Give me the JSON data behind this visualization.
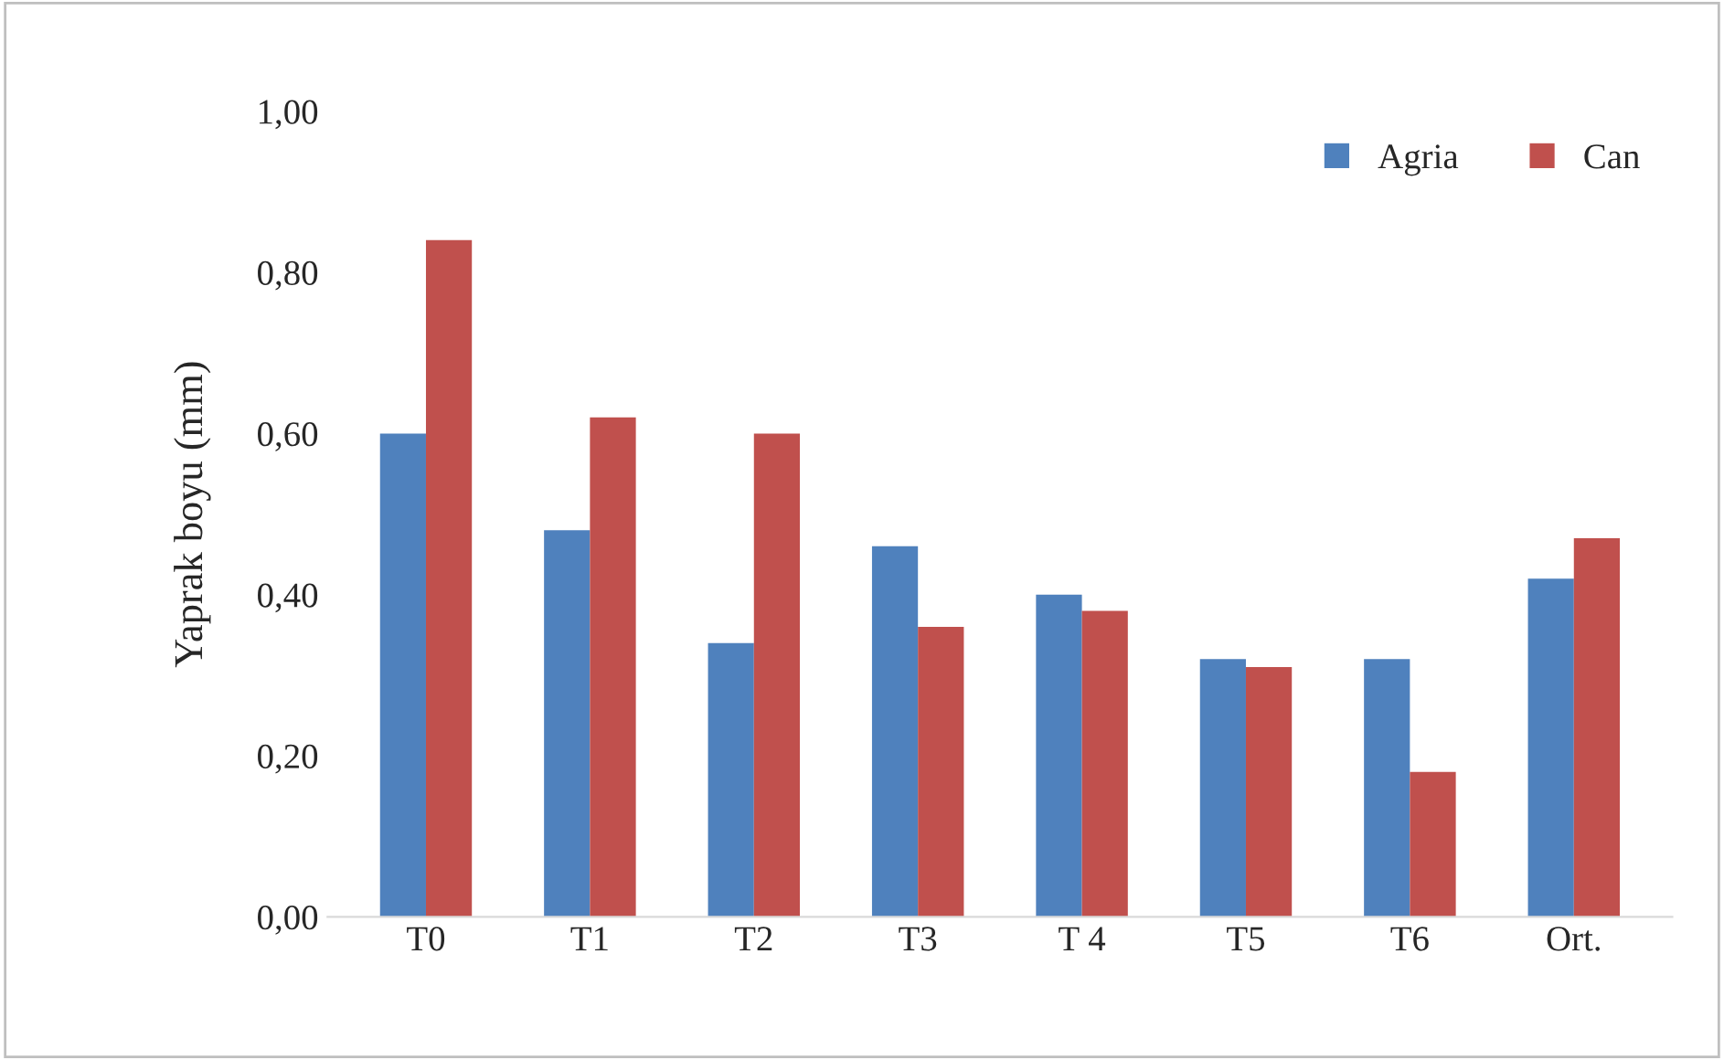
{
  "chart_data": {
    "type": "bar",
    "ylabel": "Yaprak boyu (mm)",
    "categories": [
      "T0",
      "T1",
      "T2",
      "T3",
      "T 4",
      "T5",
      "T6",
      "Ort."
    ],
    "series": [
      {
        "name": "Agria",
        "color": "#4f81bd",
        "values": [
          0.6,
          0.48,
          0.34,
          0.46,
          0.4,
          0.32,
          0.32,
          0.42
        ]
      },
      {
        "name": "Can",
        "color": "#c0504d",
        "values": [
          0.84,
          0.62,
          0.6,
          0.36,
          0.38,
          0.31,
          0.18,
          0.47
        ]
      }
    ],
    "ylim": [
      0,
      1
    ],
    "yticks": [
      {
        "value": 0,
        "label": "0,00"
      },
      {
        "value": 0.2,
        "label": "0,20"
      },
      {
        "value": 0.4,
        "label": "0,40"
      },
      {
        "value": 0.6,
        "label": "0,60"
      },
      {
        "value": 0.8,
        "label": "0,80"
      },
      {
        "value": 1,
        "label": "1,00"
      }
    ],
    "grid": false,
    "legend": "top right"
  }
}
